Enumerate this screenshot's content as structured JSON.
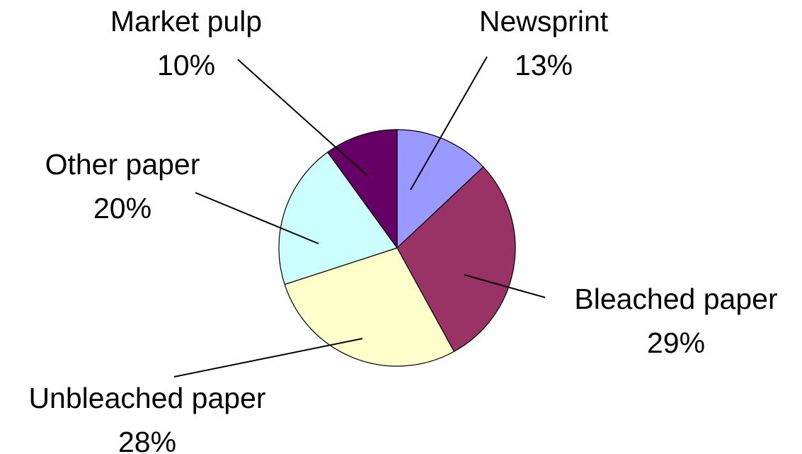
{
  "chart_data": {
    "type": "pie",
    "title": "",
    "slices": [
      {
        "label": "Newsprint",
        "value": 13,
        "pct_label": "13%",
        "color": "#9999FF"
      },
      {
        "label": "Bleached paper",
        "value": 29,
        "pct_label": "29%",
        "color": "#993366"
      },
      {
        "label": "Unbleached paper",
        "value": 28,
        "pct_label": "28%",
        "color": "#FFFFCC"
      },
      {
        "label": "Other paper",
        "value": 20,
        "pct_label": "20%",
        "color": "#CCFFFF"
      },
      {
        "label": "Market pulp",
        "value": 10,
        "pct_label": "10%",
        "color": "#660066"
      }
    ],
    "start_angle": "12 o'clock",
    "direction": "clockwise",
    "legend": "none"
  }
}
